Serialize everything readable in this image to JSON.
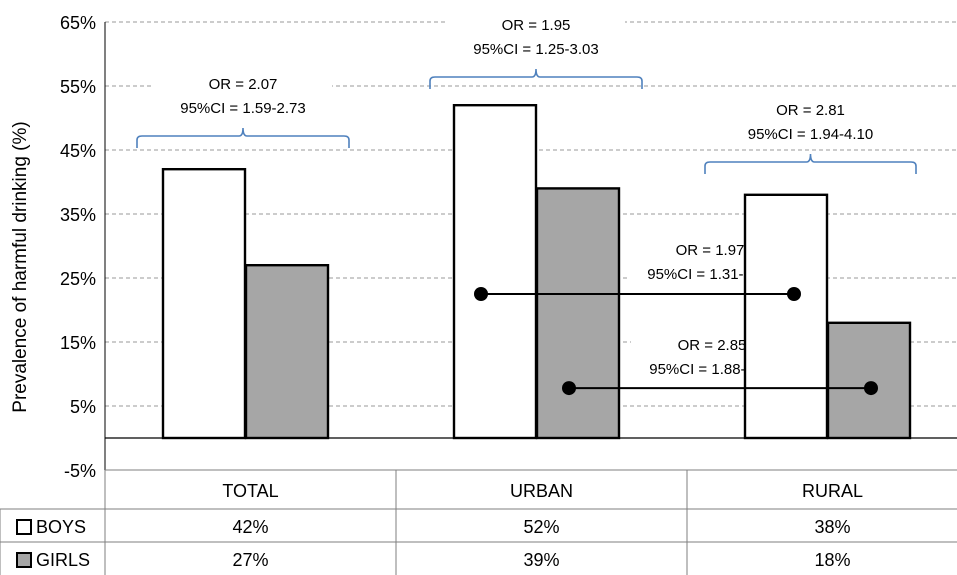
{
  "chart_data": {
    "type": "bar",
    "ylabel": "Prevalence of harmful drinking (%)",
    "ylim": [
      -5,
      65
    ],
    "y_ticks": [
      -5,
      5,
      15,
      25,
      35,
      45,
      55,
      65
    ],
    "y_tick_labels": [
      "-5%",
      "5%",
      "15%",
      "25%",
      "35%",
      "45%",
      "55%",
      "65%"
    ],
    "grid": true,
    "categories": [
      "TOTAL",
      "URBAN",
      "RURAL"
    ],
    "series": [
      {
        "name": "BOYS",
        "values": [
          42,
          52,
          38
        ],
        "labels": [
          "42%",
          "52%",
          "38%"
        ],
        "color": "#ffffff"
      },
      {
        "name": "GIRLS",
        "values": [
          27,
          39,
          18
        ],
        "labels": [
          "27%",
          "39%",
          "18%"
        ],
        "color": "#a6a6a6"
      }
    ],
    "brace_annotations": [
      {
        "category": "TOTAL",
        "line1": "OR = 2.07",
        "line2": "95%CI = 1.59-2.73"
      },
      {
        "category": "URBAN",
        "line1": "OR = 1.95",
        "line2": "95%CI = 1.25-3.03"
      },
      {
        "category": "RURAL",
        "line1": "OR = 2.81",
        "line2": "95%CI = 1.94-4.10"
      }
    ],
    "comparison_annotations": [
      {
        "series": "BOYS",
        "y": 22.5,
        "line1": "OR = 1.97",
        "line2": "95%CI = 1.31-2.95"
      },
      {
        "series": "GIRLS",
        "y": 7.8,
        "line1": "OR = 2.85",
        "line2": "95%CI = 1.88-4.31"
      }
    ],
    "brace_color": "#4f81bd"
  }
}
